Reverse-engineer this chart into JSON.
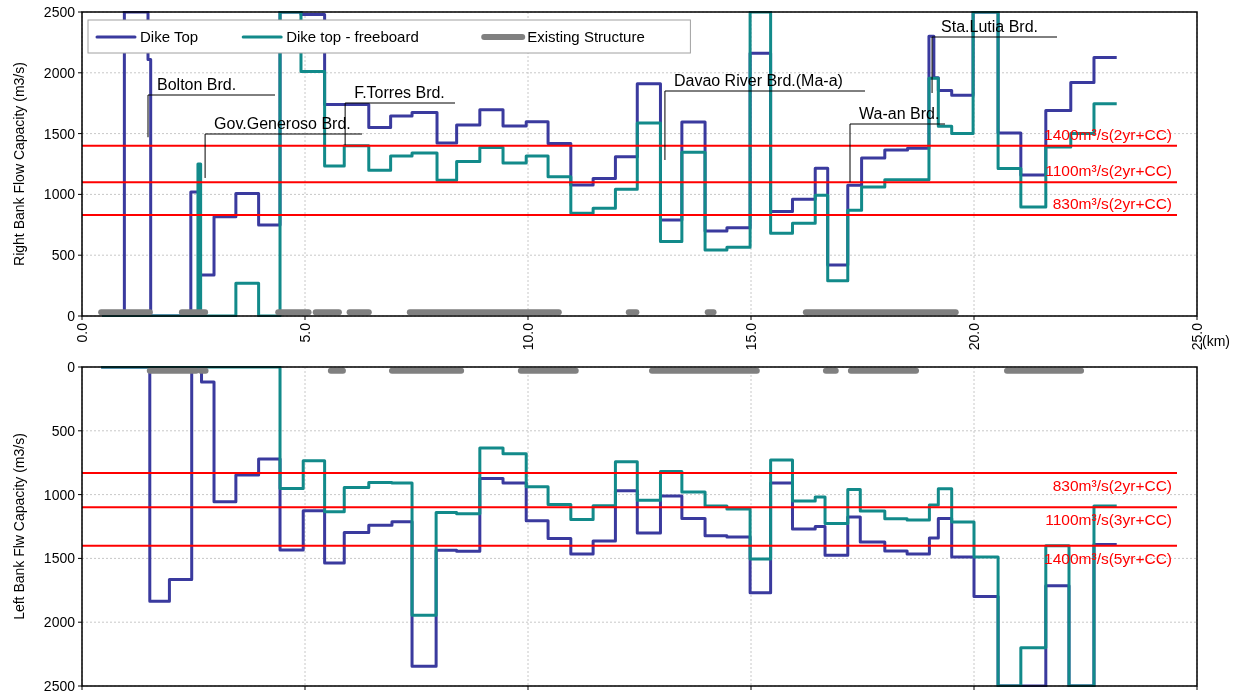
{
  "chart_data": [
    {
      "type": "step",
      "ylabel": "Right Bank Flow Capacity (m3/s)",
      "xlabel": "(km)",
      "xlim": [
        0,
        25
      ],
      "xticks": [
        {
          "value": 0,
          "label": "0.0"
        },
        {
          "value": 5,
          "label": "5.0"
        },
        {
          "value": 10,
          "label": "10.0"
        },
        {
          "value": 15,
          "label": "15.0"
        },
        {
          "value": 20,
          "label": "20.0"
        },
        {
          "value": 25,
          "label": "25.0"
        }
      ],
      "ylim": [
        0,
        2500
      ],
      "yticks": [
        0,
        500,
        1000,
        1500,
        2000,
        2500
      ],
      "grid": true,
      "legend": "top left",
      "line_style": "solid",
      "marker": "none",
      "series": [
        {
          "name": "Dike Top",
          "color": "#3a3a9e",
          "x": [
            0.45,
            0.95,
            1.48,
            1.54,
            2.44,
            2.64,
            2.96,
            3.45,
            3.96,
            4.44,
            4.91,
            5.44,
            6.43,
            6.92,
            7.4,
            7.96,
            8.4,
            8.92,
            9.44,
            9.96,
            10.45,
            10.96,
            11.46,
            11.96,
            12.45,
            12.97,
            13.45,
            13.97,
            14.46,
            14.98,
            15.44,
            15.93,
            16.44,
            16.72,
            17.17,
            17.48,
            18.0,
            18.51,
            18.99,
            19.1,
            19.2,
            19.5,
            19.98,
            20.54,
            21.05,
            21.61,
            22.17,
            22.69,
            23.2
          ],
          "values": [
            0,
            2500,
            2110,
            0,
            1020,
            337,
            816,
            1007,
            748,
            2500,
            2480,
            1740,
            1550,
            1645,
            1673,
            1423,
            1570,
            1697,
            1562,
            1597,
            1418,
            1077,
            1130,
            1310,
            1910,
            790,
            1595,
            700,
            725,
            2160,
            860,
            960,
            1215,
            420,
            1075,
            1300,
            1365,
            1380,
            2300,
            1960,
            1855,
            1815,
            2500,
            1505,
            1160,
            1690,
            1920,
            2125,
            2125
          ]
        },
        {
          "name": "Dike top - freeboard",
          "color": "#128a8a",
          "x": [
            0.45,
            2.6,
            2.66,
            3.45,
            3.96,
            4.44,
            4.91,
            5.44,
            5.88,
            6.43,
            6.92,
            7.4,
            7.96,
            8.4,
            8.92,
            9.44,
            9.96,
            10.45,
            10.96,
            11.46,
            11.96,
            12.45,
            12.97,
            13.45,
            13.97,
            14.46,
            14.98,
            15.44,
            15.93,
            16.44,
            16.72,
            17.17,
            17.48,
            18.0,
            18.99,
            19.2,
            19.5,
            19.98,
            20.54,
            21.05,
            21.61,
            22.17,
            22.69,
            23.2
          ],
          "values": [
            0,
            1250,
            0,
            270,
            0,
            2500,
            2010,
            1233,
            1400,
            1198,
            1315,
            1341,
            1116,
            1271,
            1386,
            1259,
            1315,
            1145,
            845,
            887,
            1043,
            1587,
            612,
            1347,
            543,
            565,
            2500,
            680,
            763,
            993,
            290,
            870,
            1060,
            1120,
            1955,
            1560,
            1500,
            2500,
            1213,
            897,
            1390,
            1500,
            1745,
            1745
          ]
        },
        {
          "name": "Existing Structure",
          "color": "#808080",
          "x": [
            0.43,
            1.52
          ],
          "values": [
            30,
            30
          ]
        },
        {
          "color": "#808080",
          "x": [
            2.24,
            2.76
          ],
          "values": [
            30,
            30
          ]
        },
        {
          "color": "#808080",
          "x": [
            4.4,
            5.08
          ],
          "values": [
            30,
            30
          ]
        },
        {
          "color": "#808080",
          "x": [
            5.24,
            5.76
          ],
          "values": [
            30,
            30
          ]
        },
        {
          "color": "#808080",
          "x": [
            6.0,
            6.43
          ],
          "values": [
            30,
            30
          ]
        },
        {
          "color": "#808080",
          "x": [
            7.35,
            10.69
          ],
          "values": [
            30,
            30
          ]
        },
        {
          "color": "#808080",
          "x": [
            12.26,
            12.43
          ],
          "values": [
            30,
            30
          ]
        },
        {
          "color": "#808080",
          "x": [
            14.03,
            14.16
          ],
          "values": [
            30,
            30
          ]
        },
        {
          "color": "#808080",
          "x": [
            16.23,
            19.59
          ],
          "values": [
            30,
            30
          ]
        }
      ],
      "ref_lines": [
        {
          "axis": "y",
          "value": 1400,
          "label": "1400m³/s(2yr+CC)",
          "color": "#ff0000"
        },
        {
          "axis": "y",
          "value": 1100,
          "label": "1100m³/s(2yr+CC)",
          "color": "#ff0000"
        },
        {
          "axis": "y",
          "value": 830,
          "label": "830m³/s(2yr+CC)",
          "color": "#ff0000"
        }
      ],
      "annotations": [
        {
          "text": "Bolton Brd.",
          "x": 1.48,
          "y": 1470
        },
        {
          "text": "Gov.Generoso Brd.",
          "x": 2.76,
          "y": 1135
        },
        {
          "text": "F.Torres Brd.",
          "x": 5.9,
          "y": 1405
        },
        {
          "text": "Davao River Brd.(Ma-a)",
          "x": 13.07,
          "y": 1283
        },
        {
          "text": "Wa-an Brd.",
          "x": 17.22,
          "y": 1100
        },
        {
          "text": "Sta.Lutia Brd.",
          "x": 19.06,
          "y": 1834
        }
      ]
    },
    {
      "type": "step",
      "ylabel": "Left Bank Flw Capacity (m3/s)",
      "xlim": [
        0,
        25
      ],
      "xticks": [
        0,
        5,
        10,
        15,
        20,
        25
      ],
      "ylim": [
        2500,
        0
      ],
      "yticks": [
        0,
        500,
        1000,
        1500,
        2000,
        2500
      ],
      "grid": true,
      "tick_labels": "y",
      "line_style": "solid",
      "marker": "none",
      "series": [
        {
          "color": "#3a3a9e",
          "x": [
            0.43,
            1.52,
            1.96,
            2.46,
            2.68,
            2.96,
            3.45,
            3.96,
            4.44,
            4.96,
            5.44,
            5.88,
            6.43,
            6.95,
            7.4,
            7.94,
            8.4,
            8.92,
            9.44,
            9.96,
            10.45,
            10.96,
            11.46,
            11.96,
            12.45,
            12.97,
            13.45,
            13.97,
            14.46,
            14.98,
            15.44,
            15.93,
            16.44,
            16.66,
            17.17,
            17.45,
            18.0,
            18.5,
            19.0,
            19.2,
            19.5,
            20.0,
            20.54,
            21.61,
            22.13,
            22.69,
            23.2
          ],
          "values": [
            0,
            1835,
            1666,
            0,
            118,
            1056,
            847,
            721,
            1435,
            1126,
            1536,
            1297,
            1240,
            1213,
            2346,
            1436,
            1443,
            874,
            910,
            1205,
            1345,
            1465,
            1364,
            970,
            1300,
            1010,
            1187,
            1323,
            1332,
            1769,
            909,
            1270,
            1250,
            1476,
            1175,
            1371,
            1442,
            1466,
            1340,
            1187,
            1489,
            1799,
            2500,
            1715,
            2500,
            1392,
            1392
          ]
        },
        {
          "color": "#128a8a",
          "x": [
            0.43,
            4.44,
            4.96,
            5.44,
            5.88,
            6.43,
            6.95,
            7.4,
            7.94,
            8.4,
            8.92,
            9.44,
            9.96,
            10.45,
            10.96,
            11.46,
            11.96,
            12.45,
            12.97,
            13.45,
            13.97,
            14.46,
            14.98,
            15.44,
            15.93,
            16.44,
            16.66,
            17.17,
            17.45,
            18.0,
            18.5,
            19.0,
            19.2,
            19.5,
            20.0,
            20.54,
            21.05,
            21.61,
            22.13,
            22.69,
            23.2
          ],
          "values": [
            0,
            953,
            734,
            1135,
            944,
            905,
            910,
            1946,
            1140,
            1150,
            635,
            679,
            939,
            1078,
            1196,
            1087,
            743,
            1045,
            819,
            980,
            1089,
            1113,
            1505,
            729,
            1050,
            1019,
            1227,
            961,
            1129,
            1190,
            1200,
            1082,
            955,
            1215,
            1490,
            2500,
            2200,
            1401,
            2500,
            1090,
            1090
          ]
        },
        {
          "color": "#808080",
          "x": [
            1.52,
            2.56
          ],
          "values": [
            30,
            30
          ]
        },
        {
          "color": "#808080",
          "x": [
            2.66,
            2.77
          ],
          "values": [
            30,
            30
          ]
        },
        {
          "color": "#808080",
          "x": [
            5.58,
            5.85
          ],
          "values": [
            30,
            30
          ]
        },
        {
          "color": "#808080",
          "x": [
            6.95,
            8.5
          ],
          "values": [
            30,
            30
          ]
        },
        {
          "color": "#808080",
          "x": [
            9.84,
            11.07
          ],
          "values": [
            30,
            30
          ]
        },
        {
          "color": "#808080",
          "x": [
            12.78,
            15.13
          ],
          "values": [
            30,
            30
          ]
        },
        {
          "color": "#808080",
          "x": [
            16.68,
            16.9
          ],
          "values": [
            30,
            30
          ]
        },
        {
          "color": "#808080",
          "x": [
            17.24,
            18.7
          ],
          "values": [
            30,
            30
          ]
        },
        {
          "color": "#808080",
          "x": [
            20.74,
            22.4
          ],
          "values": [
            30,
            30
          ]
        }
      ],
      "ref_lines": [
        {
          "axis": "y",
          "value": 830,
          "label": "830m³/s(2yr+CC)",
          "color": "#ff0000"
        },
        {
          "axis": "y",
          "value": 1100,
          "label": "1100m³/s(3yr+CC)",
          "color": "#ff0000"
        },
        {
          "axis": "y",
          "value": 1400,
          "label": "1400m³/s(5yr+CC)",
          "color": "#ff0000"
        }
      ]
    }
  ]
}
